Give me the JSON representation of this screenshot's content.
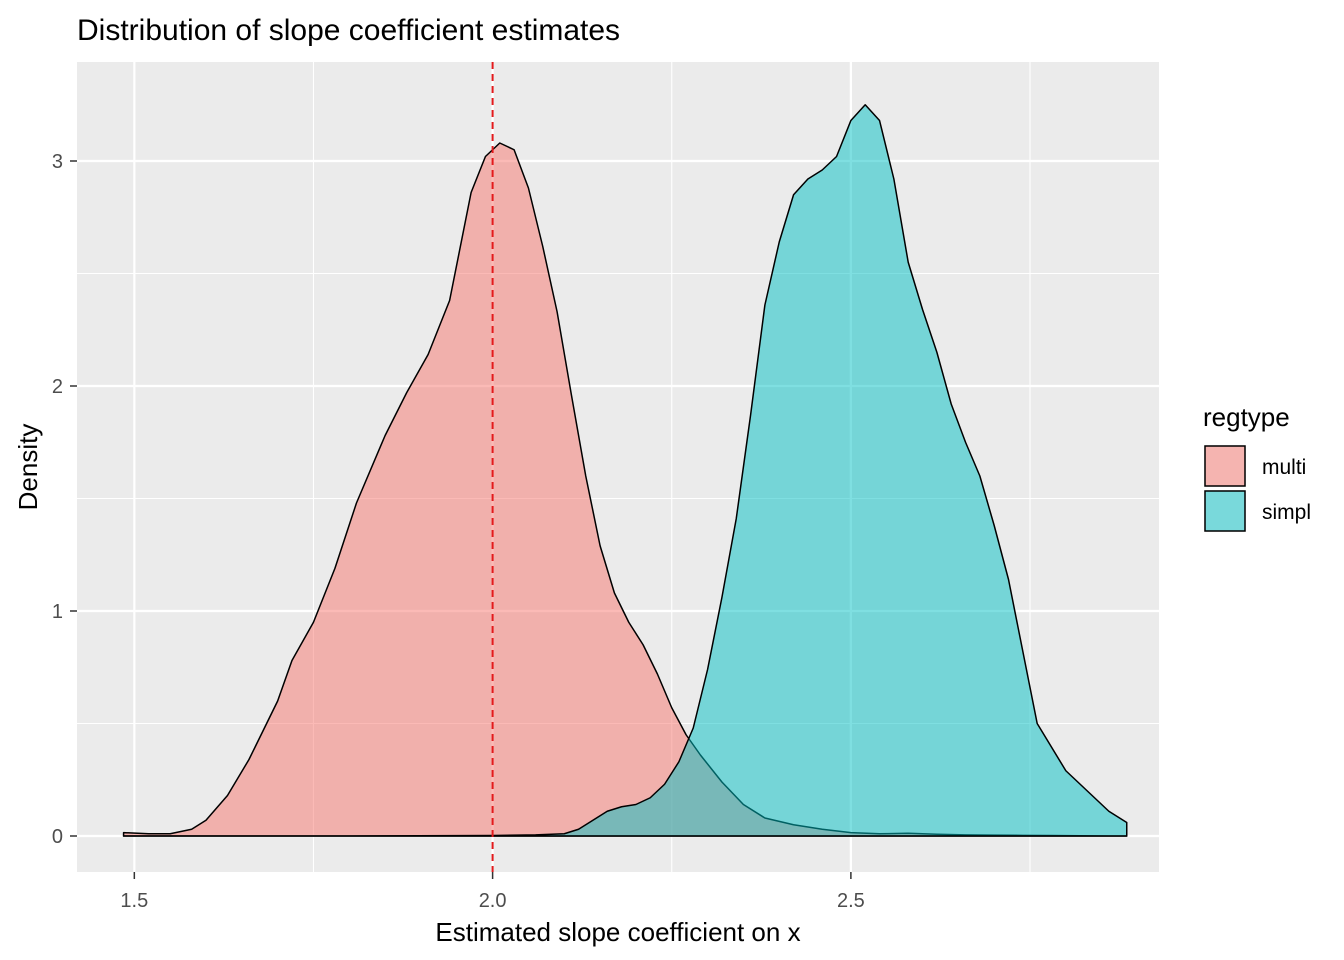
{
  "chart_data": {
    "type": "area",
    "title": "Distribution of slope coefficient estimates",
    "xlabel": "Estimated slope coefficient on x",
    "ylabel": "Density",
    "xlim": [
      1.42,
      2.93
    ],
    "ylim": [
      -0.16,
      3.44
    ],
    "x_ticks": [
      {
        "value": 1.5,
        "label": "1.5"
      },
      {
        "value": 2.0,
        "label": "2.0"
      },
      {
        "value": 2.5,
        "label": "2.5"
      }
    ],
    "y_ticks": [
      {
        "value": 0,
        "label": "0"
      },
      {
        "value": 1,
        "label": "1"
      },
      {
        "value": 2,
        "label": "2"
      },
      {
        "value": 3,
        "label": "3"
      }
    ],
    "grid": true,
    "reference_line": {
      "x": 2.0,
      "color": "#e31a1c",
      "style": "dashed"
    },
    "legend": {
      "title": "regtype",
      "position": "right"
    },
    "series": [
      {
        "name": "multi",
        "color": "#f8766d",
        "x": [
          1.485,
          1.52,
          1.55,
          1.58,
          1.6,
          1.63,
          1.66,
          1.7,
          1.72,
          1.75,
          1.78,
          1.81,
          1.85,
          1.88,
          1.91,
          1.94,
          1.97,
          1.99,
          2.01,
          2.03,
          2.05,
          2.07,
          2.09,
          2.11,
          2.13,
          2.15,
          2.17,
          2.19,
          2.21,
          2.23,
          2.25,
          2.27,
          2.29,
          2.32,
          2.35,
          2.38,
          2.42,
          2.46,
          2.5,
          2.54,
          2.58,
          2.62,
          2.66,
          2.7,
          2.74,
          2.78,
          2.82,
          2.86,
          2.885
        ],
        "y": [
          0.015,
          0.01,
          0.01,
          0.03,
          0.07,
          0.18,
          0.34,
          0.6,
          0.78,
          0.95,
          1.19,
          1.48,
          1.78,
          1.97,
          2.14,
          2.38,
          2.86,
          3.02,
          3.08,
          3.05,
          2.88,
          2.62,
          2.33,
          1.96,
          1.6,
          1.29,
          1.08,
          0.95,
          0.85,
          0.72,
          0.57,
          0.45,
          0.36,
          0.24,
          0.14,
          0.08,
          0.05,
          0.03,
          0.015,
          0.01,
          0.012,
          0.008,
          0.005,
          0.004,
          0.003,
          0.002,
          0.001,
          0.0,
          0.0
        ]
      },
      {
        "name": "simpl",
        "color": "#00bfc4",
        "x": [
          1.485,
          1.6,
          1.8,
          2.0,
          2.06,
          2.1,
          2.12,
          2.14,
          2.16,
          2.18,
          2.2,
          2.22,
          2.24,
          2.26,
          2.28,
          2.3,
          2.32,
          2.34,
          2.36,
          2.38,
          2.4,
          2.42,
          2.44,
          2.46,
          2.48,
          2.5,
          2.52,
          2.54,
          2.56,
          2.58,
          2.6,
          2.62,
          2.64,
          2.66,
          2.68,
          2.7,
          2.72,
          2.74,
          2.76,
          2.8,
          2.84,
          2.86,
          2.885
        ],
        "y": [
          0.0,
          0.0,
          0.0,
          0.002,
          0.005,
          0.01,
          0.03,
          0.07,
          0.11,
          0.13,
          0.14,
          0.17,
          0.23,
          0.33,
          0.48,
          0.74,
          1.06,
          1.41,
          1.87,
          2.36,
          2.64,
          2.85,
          2.92,
          2.96,
          3.02,
          3.18,
          3.25,
          3.18,
          2.92,
          2.55,
          2.34,
          2.15,
          1.92,
          1.75,
          1.6,
          1.38,
          1.14,
          0.82,
          0.5,
          0.29,
          0.17,
          0.11,
          0.06
        ]
      }
    ]
  }
}
